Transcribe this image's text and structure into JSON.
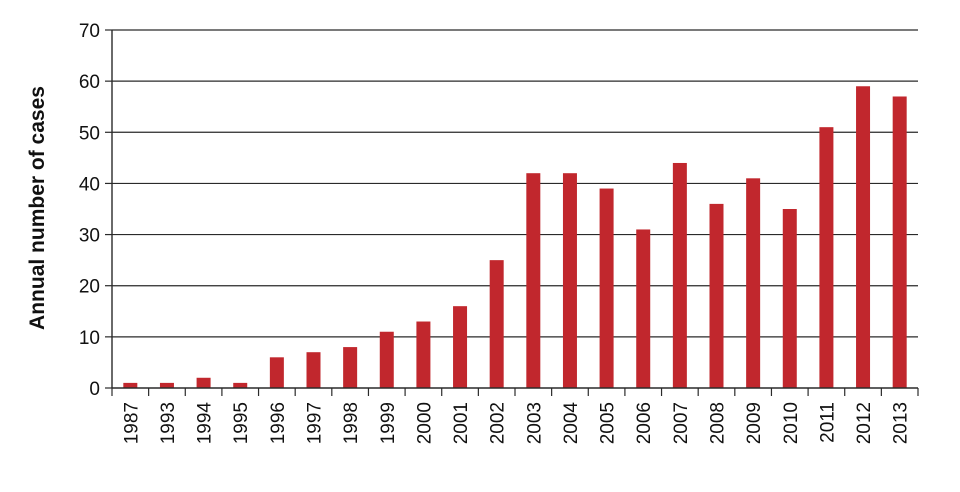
{
  "chart_data": {
    "type": "bar",
    "title": "",
    "xlabel": "",
    "ylabel": "Annual number of cases",
    "categories": [
      "1987",
      "1993",
      "1994",
      "1995",
      "1996",
      "1997",
      "1998",
      "1999",
      "2000",
      "2001",
      "2002",
      "2003",
      "2004",
      "2005",
      "2006",
      "2007",
      "2008",
      "2009",
      "2010",
      "2011",
      "2012",
      "2013"
    ],
    "values": [
      1,
      1,
      2,
      1,
      6,
      7,
      8,
      11,
      13,
      16,
      25,
      42,
      42,
      39,
      31,
      44,
      36,
      41,
      35,
      51,
      59,
      57
    ],
    "ylim": [
      0,
      70
    ],
    "yticks": [
      0,
      10,
      20,
      30,
      40,
      50,
      60,
      70
    ],
    "grid": "horizontal",
    "legend": "none",
    "bar_color": "#c1272d"
  }
}
